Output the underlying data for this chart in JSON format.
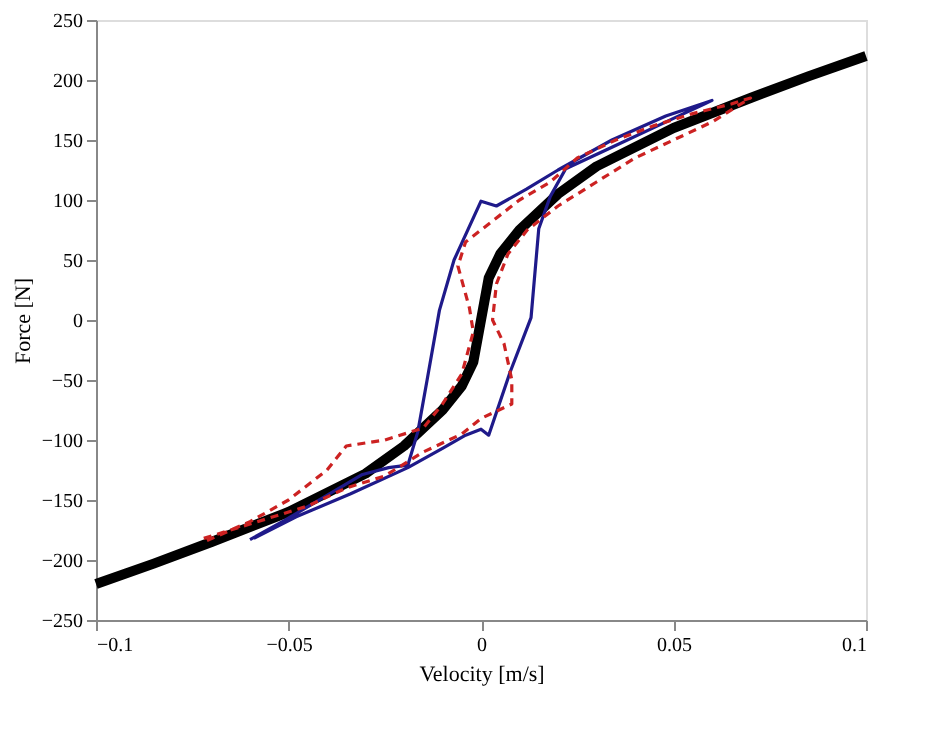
{
  "chart_data": {
    "type": "line",
    "xlabel": "Velocity [m/s]",
    "ylabel": "Force [N]",
    "xlim": [
      -0.1,
      0.1
    ],
    "ylim": [
      -250,
      250
    ],
    "xticks": [
      -0.1,
      -0.05,
      0,
      0.05,
      0.1
    ],
    "yticks": [
      -250,
      -200,
      -150,
      -100,
      -50,
      0,
      50,
      100,
      150,
      200,
      250
    ],
    "grid": false,
    "marker": "none",
    "series": [
      {
        "color": "#000000",
        "line_style": "solid",
        "x": [
          -0.1,
          -0.085,
          -0.07,
          -0.05,
          -0.03,
          -0.02,
          -0.01,
          -0.005,
          -0.002,
          0,
          0.002,
          0.005,
          0.01,
          0.02,
          0.03,
          0.05,
          0.07,
          0.085,
          0.1
        ],
        "values": [
          -220,
          -203,
          -185,
          -160,
          -128,
          -105,
          -75,
          -55,
          -35,
          0,
          35,
          55,
          75,
          105,
          128,
          160,
          185,
          203,
          220
        ]
      },
      {
        "color": "#1f1a8a",
        "line_style": "solid",
        "x": [
          -0.06,
          -0.051,
          -0.041,
          -0.031,
          -0.024,
          -0.019,
          -0.0164,
          -0.014,
          -0.0108,
          -0.007,
          0,
          0.004,
          0.0118,
          0.02,
          0.034,
          0.048,
          0.06,
          0.058,
          0.05,
          0.034,
          0.022,
          0.018,
          0.015,
          0.013,
          0.0075,
          0.002,
          0,
          -0.004,
          -0.01,
          -0.019,
          -0.034,
          -0.048,
          -0.059
        ],
        "values": [
          -183,
          -167,
          -148,
          -129,
          -123,
          -121,
          -93,
          -50,
          8,
          50,
          99,
          95,
          109,
          125,
          150,
          170,
          183,
          180,
          168,
          144,
          126,
          103,
          76,
          2,
          -44,
          -96,
          -91,
          -96,
          -107,
          -123,
          -145,
          -164,
          -182
        ]
      },
      {
        "color": "#cc2222",
        "line_style": "dashed",
        "x": [
          -0.072,
          -0.06,
          -0.045,
          -0.035,
          -0.025,
          -0.015,
          -0.005,
          0,
          0.008,
          0.008,
          0.006,
          0.003,
          0.004,
          0.007,
          0.012,
          0.02,
          0.03,
          0.04,
          0.05,
          0.06,
          0.07,
          0.065,
          0.055,
          0.045,
          0.035,
          0.025,
          0.018,
          0.01,
          0.004,
          -0.004,
          -0.006,
          -0.003,
          -0.002,
          -0.005,
          -0.01,
          -0.015,
          -0.025,
          -0.035,
          -0.04,
          -0.05,
          -0.06,
          -0.072
        ],
        "values": [
          -182,
          -170,
          -155,
          -140,
          -130,
          -110,
          -95,
          -82,
          -70,
          -50,
          -20,
          0,
          30,
          55,
          75,
          95,
          115,
          135,
          150,
          165,
          185,
          180,
          172,
          162,
          150,
          135,
          115,
          100,
          85,
          65,
          45,
          10,
          -10,
          -45,
          -70,
          -90,
          -100,
          -105,
          -125,
          -150,
          -168,
          -185
        ]
      }
    ]
  }
}
